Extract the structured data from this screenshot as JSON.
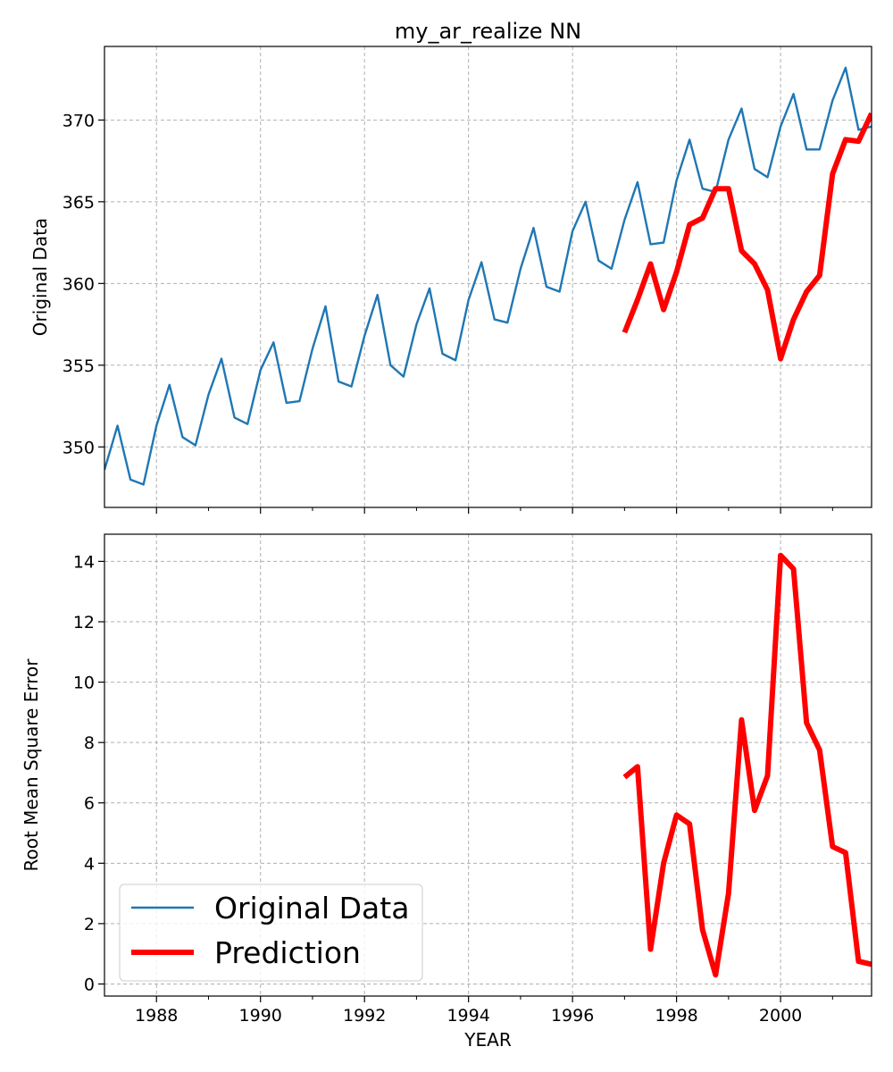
{
  "chart_data": [
    {
      "type": "line",
      "title": "my_ar_realize NN",
      "xlabel": "",
      "ylabel": "Original Data",
      "xlim": [
        1987.0,
        2001.75
      ],
      "ylim": [
        346.3,
        374.5
      ],
      "xticks": [
        1988,
        1990,
        1992,
        1994,
        1996,
        1998,
        2000
      ],
      "yticks": [
        350,
        355,
        360,
        365,
        370
      ],
      "grid": true,
      "series": [
        {
          "name": "Original Data",
          "color": "#1f77b4",
          "x": [
            1987.0,
            1987.25,
            1987.5,
            1987.75,
            1988.0,
            1988.25,
            1988.5,
            1988.75,
            1989.0,
            1989.25,
            1989.5,
            1989.75,
            1990.0,
            1990.25,
            1990.5,
            1990.75,
            1991.0,
            1991.25,
            1991.5,
            1991.75,
            1992.0,
            1992.25,
            1992.5,
            1992.75,
            1993.0,
            1993.25,
            1993.5,
            1993.75,
            1994.0,
            1994.25,
            1994.5,
            1994.75,
            1995.0,
            1995.25,
            1995.5,
            1995.75,
            1996.0,
            1996.25,
            1996.5,
            1996.75,
            1997.0,
            1997.25,
            1997.5,
            1997.75,
            1998.0,
            1998.25,
            1998.5,
            1998.75,
            1999.0,
            1999.25,
            1999.5,
            1999.75,
            2000.0,
            2000.25,
            2000.5,
            2000.75,
            2001.0,
            2001.25,
            2001.5,
            2001.75
          ],
          "y": [
            348.6,
            351.3,
            348.0,
            347.7,
            351.3,
            353.8,
            350.6,
            350.1,
            353.2,
            355.4,
            351.8,
            351.4,
            354.7,
            356.4,
            352.7,
            352.8,
            356.0,
            358.6,
            354.0,
            353.7,
            356.8,
            359.3,
            355.0,
            354.3,
            357.5,
            359.7,
            355.7,
            355.3,
            359.0,
            361.3,
            357.8,
            357.6,
            360.9,
            363.4,
            359.8,
            359.5,
            363.2,
            365.0,
            361.4,
            360.9,
            363.9,
            366.2,
            362.4,
            362.5,
            366.3,
            368.8,
            365.8,
            365.6,
            368.8,
            370.7,
            367.0,
            366.5,
            369.6,
            371.6,
            368.2,
            368.2,
            371.2,
            373.2,
            369.4,
            369.6
          ]
        },
        {
          "name": "Prediction",
          "color": "#ff0000",
          "x": [
            1997.0,
            1997.25,
            1997.5,
            1997.75,
            1998.0,
            1998.25,
            1998.5,
            1998.75,
            1999.0,
            1999.25,
            1999.5,
            1999.75,
            2000.0,
            2000.25,
            2000.5,
            2000.75,
            2001.0,
            2001.25,
            2001.5,
            2001.75
          ],
          "y": [
            357.0,
            359.0,
            361.2,
            358.4,
            360.7,
            363.6,
            364.0,
            365.8,
            365.8,
            362.0,
            361.2,
            359.6,
            355.4,
            357.8,
            359.5,
            360.5,
            366.7,
            368.8,
            368.7,
            370.4
          ]
        }
      ]
    },
    {
      "type": "line",
      "title": "",
      "xlabel": "YEAR",
      "ylabel": "Root Mean Square Error",
      "xlim": [
        1987.0,
        2001.75
      ],
      "ylim": [
        -0.4,
        14.9
      ],
      "xticks": [
        1988,
        1990,
        1992,
        1994,
        1996,
        1998,
        2000
      ],
      "yticks": [
        0,
        2,
        4,
        6,
        8,
        10,
        12,
        14
      ],
      "grid": true,
      "legend": "lower-left",
      "series": [
        {
          "name": "Prediction",
          "color": "#ff0000",
          "x": [
            1997.0,
            1997.25,
            1997.5,
            1997.75,
            1998.0,
            1998.25,
            1998.5,
            1998.75,
            1999.0,
            1999.25,
            1999.5,
            1999.75,
            2000.0,
            2000.25,
            2000.5,
            2000.75,
            2001.0,
            2001.25,
            2001.5,
            2001.75
          ],
          "y": [
            6.85,
            7.2,
            1.15,
            4.0,
            5.6,
            5.3,
            1.8,
            0.3,
            3.0,
            8.75,
            5.75,
            6.9,
            14.2,
            13.75,
            8.65,
            7.75,
            4.55,
            4.35,
            0.75,
            0.65
          ]
        }
      ]
    }
  ],
  "legend": {
    "entries": [
      {
        "label": "Original Data",
        "color": "#1f77b4"
      },
      {
        "label": "Prediction",
        "color": "#ff0000"
      }
    ]
  }
}
